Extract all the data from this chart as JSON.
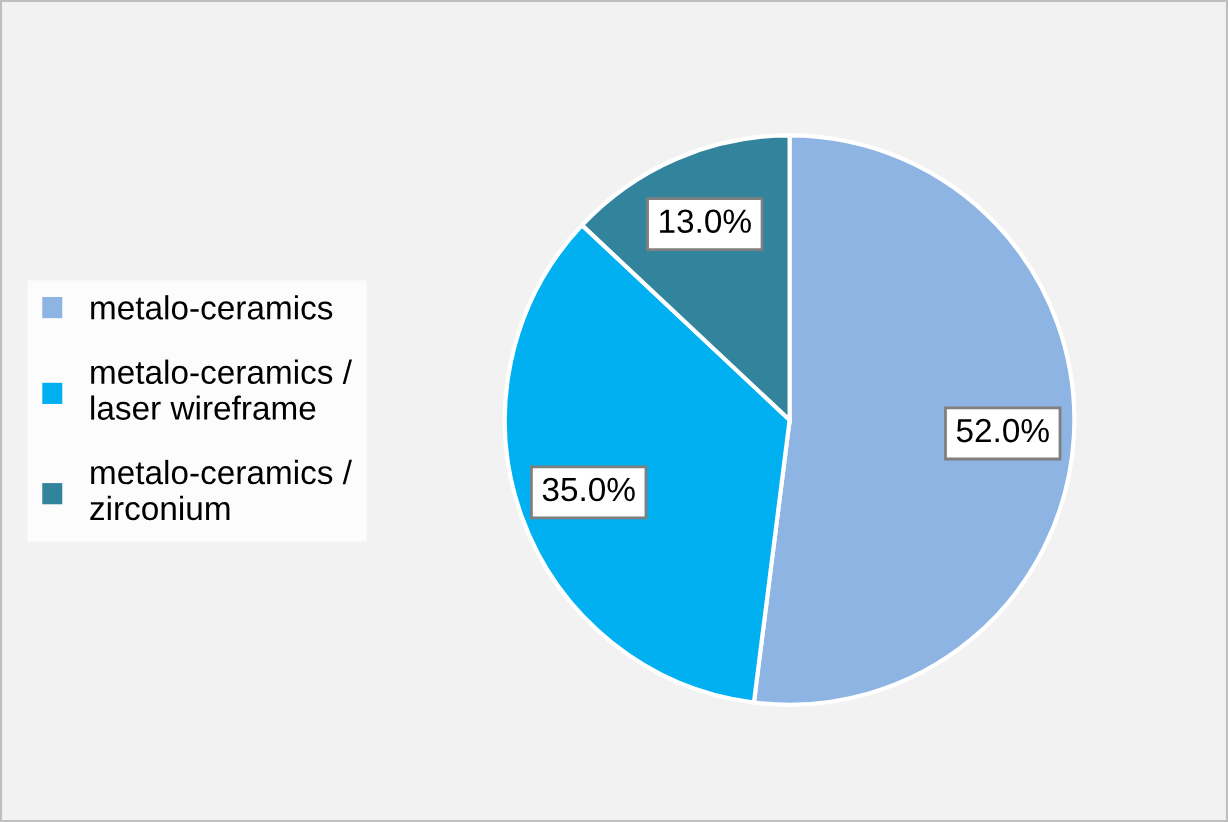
{
  "chart_data": {
    "type": "pie",
    "categories": [
      "metalo-ceramics",
      "metalo-ceramics /\nlaser wireframe",
      "metalo-ceramics /\nzirconium"
    ],
    "values": [
      52.0,
      35.0,
      13.0
    ],
    "colors": [
      "#8eb4e3",
      "#00b0f0",
      "#31849b"
    ],
    "value_labels": [
      "52.0%",
      "35.0%",
      "13.0%"
    ],
    "legend": "left"
  }
}
